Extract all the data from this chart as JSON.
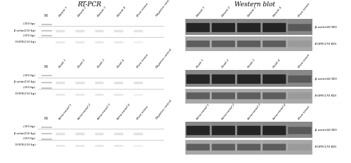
{
  "title_left": "RT-PCR",
  "title_right": "Western blot",
  "rows": [
    {
      "pcr_col_labels": [
        "M",
        "Patient 1",
        "Patient 2",
        "Patient 3",
        "Patient 4",
        "Brain tissue",
        "Negative control"
      ],
      "wb_col_labels": [
        "Patient 1",
        "Patient 2",
        "Patient 3",
        "Patient 4",
        "Brain tissue"
      ],
      "pcr_left_labels": [
        "(300 bp)",
        "β-actin(250 bp)",
        "(200 bp)",
        "EGFR(150 bp)"
      ],
      "wb_right_labels": [
        "-β-actin(42 KD)",
        "-EGFR(170 KD)"
      ]
    },
    {
      "pcr_col_labels": [
        "M",
        "Flank 1",
        "Flank 2",
        "Flank 3",
        "Flank 4",
        "Brain tissue",
        "Negative control"
      ],
      "wb_col_labels": [
        "Flank 1",
        "Flank 2",
        "Flank 3",
        "Flank 4",
        "Brain tissue"
      ],
      "pcr_left_labels": [
        "(300 bp)",
        "β-actin(250 bp)",
        "(200 bp)",
        "EGFR(150 bp)"
      ],
      "wb_right_labels": [
        "-β-actin(42 KD)",
        "-EGFR(170 KD)"
      ]
    },
    {
      "pcr_col_labels": [
        "M",
        "Intracranial 1",
        "Intracranial 2",
        "Intracranial 3",
        "Intracranial 4",
        "Brain tissue",
        "Negative control"
      ],
      "wb_col_labels": [
        "Intracranial 1",
        "Intracranial 2",
        "Intracranial 3",
        "Intracranial 4",
        "Brain tissue"
      ],
      "pcr_left_labels": [
        "(300 bp)",
        "β-actin(250 bp)",
        "(200 bp)",
        "EGFR(150 bp)"
      ],
      "wb_right_labels": [
        "-β-actin(42 KD)",
        "-EGFR(170 KD)"
      ]
    }
  ],
  "pcr_bg": "#111111",
  "pcr_band_white": "#e0e0e0",
  "pcr_band_dim": "#888888",
  "pcr_marker": "#c0c0c0",
  "wb_bg_upper": "#808080",
  "wb_bg_lower": "#a0a0a0",
  "wb_sep_color": "#ffffff",
  "wb_band_dark": "#1c1c1c",
  "wb_band_mid": "#4a4a4a",
  "wb_band_light": "#909090",
  "wb_bg_whole": "#c8c8c8",
  "text_color": "#111111",
  "label_color": "#222222"
}
